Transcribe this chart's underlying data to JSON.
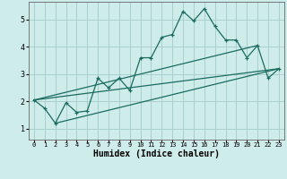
{
  "title": "",
  "xlabel": "Humidex (Indice chaleur)",
  "bg_color": "#ceecea",
  "grid_color": "#aacfcc",
  "line_color": "#1a6b60",
  "xlim": [
    -0.5,
    23.5
  ],
  "ylim": [
    0.6,
    5.65
  ],
  "xticks": [
    0,
    1,
    2,
    3,
    4,
    5,
    6,
    7,
    8,
    9,
    10,
    11,
    12,
    13,
    14,
    15,
    16,
    17,
    18,
    19,
    20,
    21,
    22,
    23
  ],
  "yticks": [
    1,
    2,
    3,
    4,
    5
  ],
  "main_x": [
    0,
    1,
    2,
    3,
    4,
    5,
    6,
    7,
    8,
    9,
    10,
    11,
    12,
    13,
    14,
    15,
    16,
    17,
    18,
    19,
    20,
    21,
    22,
    23
  ],
  "main_y": [
    2.05,
    1.75,
    1.2,
    1.95,
    1.6,
    1.65,
    2.85,
    2.5,
    2.85,
    2.4,
    3.6,
    3.6,
    4.35,
    4.45,
    5.3,
    4.95,
    5.4,
    4.75,
    4.25,
    4.25,
    3.6,
    4.05,
    2.85,
    3.2
  ],
  "line2_x": [
    0,
    23
  ],
  "line2_y": [
    2.05,
    3.2
  ],
  "line3_x": [
    2,
    23
  ],
  "line3_y": [
    1.2,
    3.2
  ],
  "line4_x": [
    0,
    21
  ],
  "line4_y": [
    2.05,
    4.05
  ]
}
